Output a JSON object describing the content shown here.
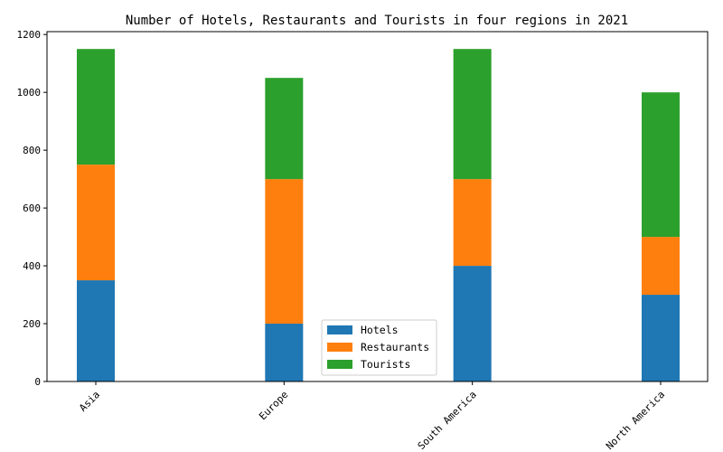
{
  "chart_data": {
    "type": "bar",
    "stacked": true,
    "title": "Number of Hotels, Restaurants and Tourists in four regions in 2021",
    "xlabel": "",
    "ylabel": "",
    "categories": [
      "Asia",
      "Europe",
      "South America",
      "North America"
    ],
    "series": [
      {
        "name": "Hotels",
        "values": [
          350,
          200,
          400,
          300
        ],
        "color": "#1f77b4"
      },
      {
        "name": "Restaurants",
        "values": [
          400,
          500,
          300,
          200
        ],
        "color": "#ff7f0e"
      },
      {
        "name": "Tourists",
        "values": [
          400,
          350,
          450,
          500
        ],
        "color": "#2ca02c"
      }
    ],
    "ylim": [
      0,
      1210
    ],
    "yticks": [
      0,
      200,
      400,
      600,
      800,
      1000,
      1200
    ],
    "grid": false,
    "legend_position": "bottom-center",
    "xtick_rotation": 45
  }
}
